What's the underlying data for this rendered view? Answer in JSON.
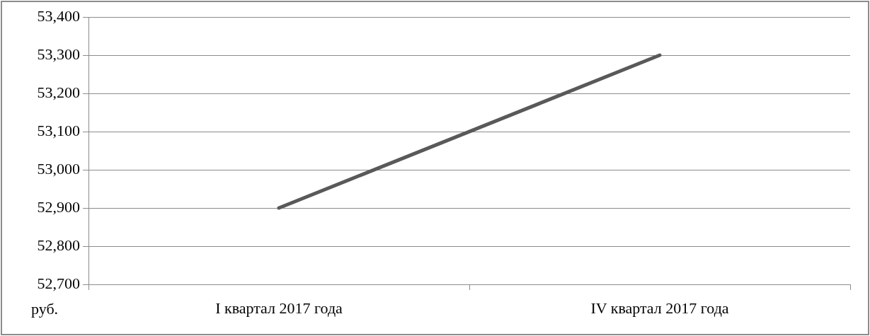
{
  "chart_data": {
    "type": "line",
    "ylabel": "руб.",
    "categories": [
      "I квартал 2017 года",
      "IV квартал 2017 года"
    ],
    "series": [
      {
        "color": "#595959",
        "values": [
          52900,
          53300
        ]
      }
    ],
    "ylim": [
      52700,
      53400
    ],
    "yticks": [
      {
        "value": 52700,
        "label": "52,700"
      },
      {
        "value": 52800,
        "label": "52,800"
      },
      {
        "value": 52900,
        "label": "52,900"
      },
      {
        "value": 53000,
        "label": "53,000"
      },
      {
        "value": 53100,
        "label": "53,100"
      },
      {
        "value": 53200,
        "label": "53,200"
      },
      {
        "value": 53300,
        "label": "53,300"
      },
      {
        "value": 53400,
        "label": "53,400"
      }
    ],
    "grid": "y",
    "legend": false,
    "marker": "none",
    "line_style": "solid"
  }
}
